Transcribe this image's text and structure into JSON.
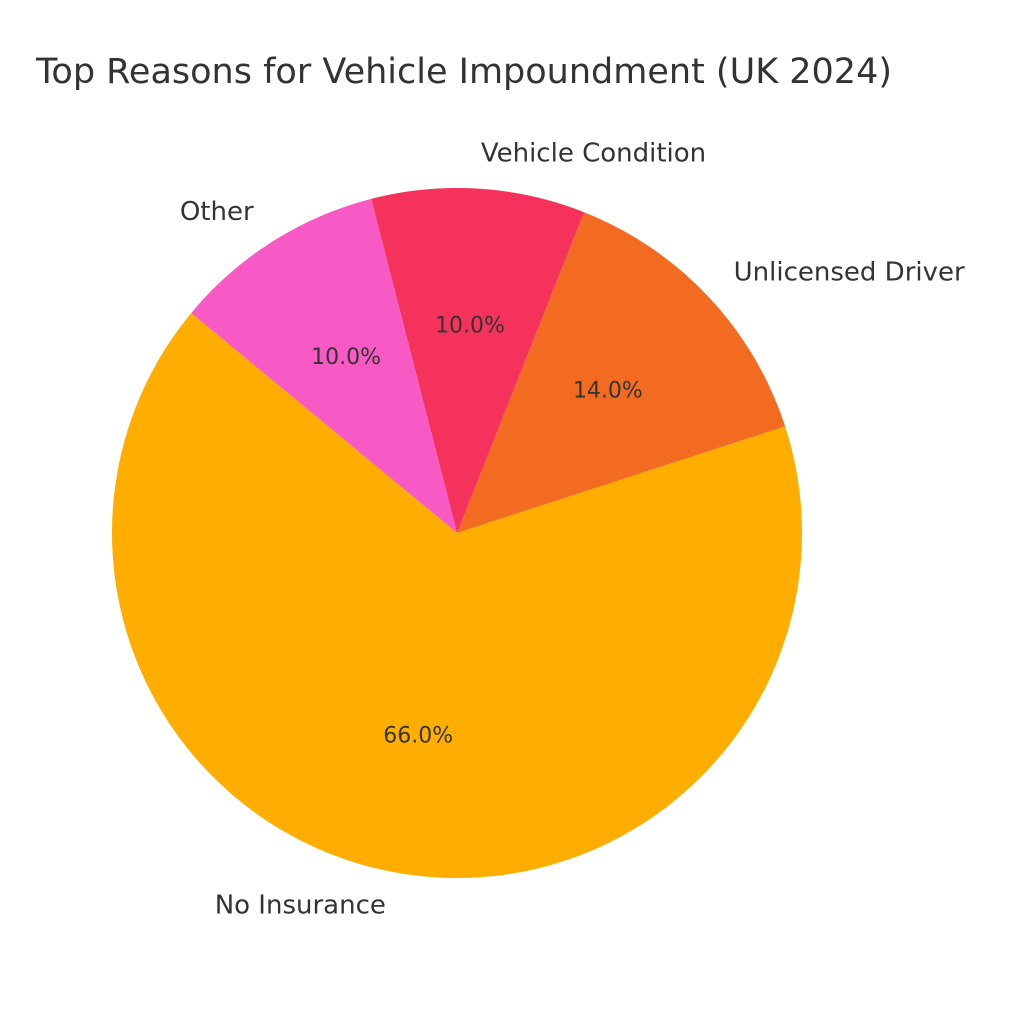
{
  "chart_data": {
    "type": "pie",
    "title": "Top Reasons for Vehicle Impoundment (UK 2024)",
    "slices": [
      {
        "label": "Unlicensed Driver",
        "value": 14.0,
        "pct_label": "14.0%",
        "color": "#F26B21"
      },
      {
        "label": "Vehicle Condition",
        "value": 10.0,
        "pct_label": "10.0%",
        "color": "#F5325B"
      },
      {
        "label": "Other",
        "value": 10.0,
        "pct_label": "10.0%",
        "color": "#F75AC4"
      },
      {
        "label": "No Insurance",
        "value": 66.0,
        "pct_label": "66.0%",
        "color": "#FFAE00"
      }
    ],
    "start_angle_deg": 18,
    "direction": "counterclockwise"
  }
}
